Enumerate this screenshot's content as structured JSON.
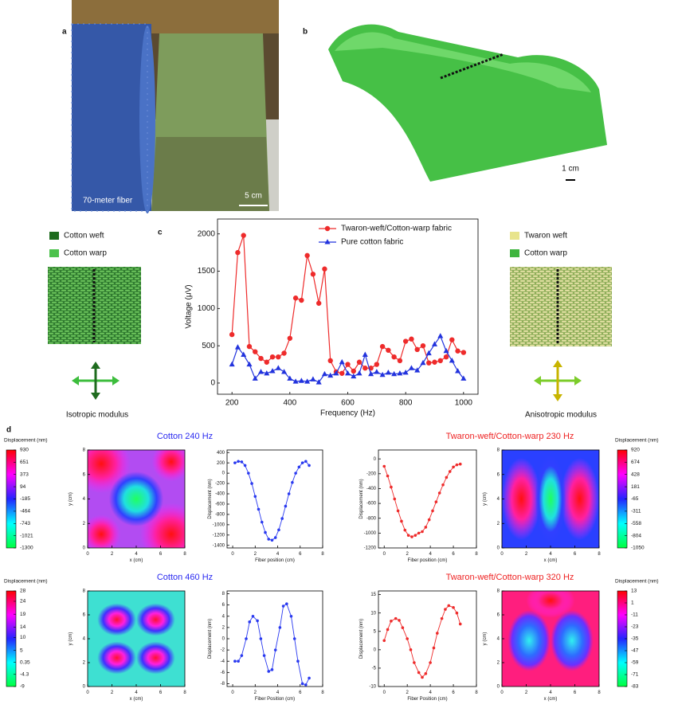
{
  "panel_labels": [
    "a",
    "b",
    "c",
    "d"
  ],
  "photo_a": {
    "caption": "70-meter fiber",
    "scale_bar": "5 cm"
  },
  "photo_b": {
    "scale_bar": "1 cm"
  },
  "fabric_left": {
    "legend": [
      "Cotton weft",
      "Cotton warp"
    ],
    "caption": "Isotropic modulus"
  },
  "fabric_right": {
    "legend": [
      "Twaron weft",
      "Cotton warp"
    ],
    "caption": "Anisotropic modulus"
  },
  "chart_data": [
    {
      "type": "line",
      "x_label": "Frequency (Hz)",
      "y_label": "Voltage (μV)",
      "legend": "upper right",
      "x": [
        200,
        220,
        240,
        260,
        280,
        300,
        320,
        340,
        360,
        380,
        400,
        420,
        440,
        460,
        480,
        500,
        520,
        540,
        560,
        580,
        600,
        620,
        640,
        660,
        680,
        700,
        720,
        740,
        760,
        780,
        800,
        820,
        840,
        860,
        880,
        900,
        920,
        940,
        960,
        980,
        1000
      ],
      "series": [
        {
          "name": "Twaron-weft/Cotton-warp fabric",
          "color": "#ee2b2b",
          "marker": "circle",
          "values": [
            650,
            1750,
            1980,
            490,
            420,
            330,
            280,
            350,
            350,
            400,
            600,
            1140,
            1110,
            1710,
            1460,
            1070,
            1530,
            300,
            150,
            130,
            250,
            160,
            280,
            200,
            200,
            250,
            490,
            440,
            350,
            300,
            560,
            590,
            450,
            500,
            270,
            280,
            300,
            350,
            580,
            430,
            410
          ]
        },
        {
          "name": "Pure cotton fabric",
          "color": "#2233dd",
          "marker": "triangle",
          "values": [
            250,
            480,
            380,
            250,
            60,
            150,
            130,
            160,
            200,
            150,
            60,
            20,
            30,
            20,
            50,
            10,
            120,
            100,
            130,
            280,
            130,
            90,
            130,
            380,
            120,
            150,
            110,
            140,
            120,
            130,
            140,
            200,
            170,
            270,
            400,
            520,
            630,
            430,
            300,
            160,
            60
          ]
        }
      ],
      "xlim": [
        150,
        1050
      ],
      "ylim": [
        -150,
        2200
      ],
      "xticks": [
        200,
        400,
        600,
        800,
        1000
      ],
      "yticks": [
        0,
        500,
        1000,
        1500,
        2000
      ]
    },
    {
      "type": "heatmap",
      "title": "Cotton 240 Hz",
      "title_color": "#2a2af0",
      "colorbar": "left",
      "colorbar_label": "Displacement (nm)",
      "clim": [
        -1300,
        930
      ],
      "colorbar_ticks": [
        930,
        651,
        373,
        94,
        -185,
        -464,
        -743,
        -1021,
        -1300
      ],
      "x_label": "x (cm)",
      "y_label": "y (cm)",
      "xlim": [
        0,
        8
      ],
      "ylim": [
        0,
        8
      ],
      "xticks": [
        0,
        2,
        4,
        6,
        8
      ],
      "yticks": [
        0,
        2,
        4,
        6,
        8
      ]
    },
    {
      "type": "line",
      "x_label": "Fiber position (cm)",
      "y_label": "Displacement (nm)",
      "x": [
        0.2,
        0.5,
        0.8,
        1.1,
        1.4,
        1.7,
        2.0,
        2.3,
        2.6,
        2.9,
        3.2,
        3.5,
        3.8,
        4.1,
        4.4,
        4.7,
        5.0,
        5.3,
        5.6,
        5.9,
        6.2,
        6.5,
        6.8
      ],
      "series": [
        {
          "color": "#2a3af0",
          "marker": "circle",
          "values": [
            200,
            230,
            220,
            150,
            0,
            -200,
            -450,
            -700,
            -950,
            -1150,
            -1280,
            -1300,
            -1250,
            -1100,
            -880,
            -640,
            -400,
            -180,
            0,
            120,
            200,
            230,
            150
          ]
        }
      ],
      "xlim": [
        -0.5,
        8
      ],
      "ylim": [
        -1450,
        450
      ],
      "xticks": [
        0,
        2,
        4,
        6,
        8
      ],
      "yticks": [
        400,
        200,
        0,
        -200,
        -400,
        -600,
        -800,
        -1000,
        -1200,
        -1400
      ]
    },
    {
      "type": "line",
      "x_label": "Fiber position (cm)",
      "y_label": "Displacement (nm)",
      "x": [
        0,
        0.3,
        0.6,
        0.9,
        1.2,
        1.5,
        1.8,
        2.1,
        2.4,
        2.7,
        3.0,
        3.3,
        3.6,
        3.9,
        4.2,
        4.5,
        4.8,
        5.1,
        5.4,
        5.7,
        6.0,
        6.3,
        6.6
      ],
      "series": [
        {
          "color": "#ee2b2b",
          "marker": "circle",
          "values": [
            -100,
            -230,
            -380,
            -540,
            -700,
            -840,
            -960,
            -1030,
            -1050,
            -1030,
            -1000,
            -980,
            -920,
            -820,
            -700,
            -580,
            -460,
            -350,
            -250,
            -170,
            -110,
            -80,
            -70
          ]
        }
      ],
      "xlim": [
        -0.5,
        8
      ],
      "ylim": [
        -1200,
        120
      ],
      "xticks": [
        0,
        2,
        4,
        6,
        8
      ],
      "yticks": [
        0,
        -200,
        -400,
        -600,
        -800,
        -1000,
        -1200
      ]
    },
    {
      "type": "heatmap",
      "title": "Twaron-weft/Cotton-warp 230 Hz",
      "title_color": "#ee2222",
      "colorbar": "right",
      "colorbar_label": "Displacement (nm)",
      "clim": [
        -1050,
        920
      ],
      "colorbar_ticks": [
        920,
        674,
        428,
        181,
        -65,
        -311,
        -558,
        -804,
        -1050
      ],
      "x_label": "x (cm)",
      "y_label": "y (cm)",
      "xlim": [
        0,
        8
      ],
      "ylim": [
        0,
        8
      ],
      "xticks": [
        0,
        2,
        4,
        6,
        8
      ],
      "yticks": [
        0,
        2,
        4,
        6,
        8
      ]
    },
    {
      "type": "heatmap",
      "title": "Cotton 460 Hz",
      "title_color": "#2a2af0",
      "colorbar": "left",
      "colorbar_label": "Displacement (nm)",
      "clim": [
        -9,
        28
      ],
      "colorbar_ticks": [
        28,
        24,
        19,
        14,
        10,
        5,
        0.35,
        -4.3,
        -9
      ],
      "x_label": "x (cm)",
      "y_label": "y (cm)",
      "xlim": [
        0,
        8
      ],
      "ylim": [
        0,
        8
      ],
      "xticks": [
        0,
        2,
        4,
        6,
        8
      ],
      "yticks": [
        0,
        2,
        4,
        6,
        8
      ]
    },
    {
      "type": "line",
      "x_label": "Fiber Position (cm)",
      "y_label": "Displacement (nm)",
      "x": [
        0.2,
        0.5,
        0.8,
        1.2,
        1.5,
        1.8,
        2.2,
        2.5,
        2.8,
        3.2,
        3.5,
        3.8,
        4.2,
        4.5,
        4.8,
        5.2,
        5.5,
        5.8,
        6.2,
        6.5,
        6.8
      ],
      "series": [
        {
          "color": "#2a3af0",
          "marker": "circle",
          "values": [
            -4,
            -4,
            -3,
            0,
            3,
            4,
            3.2,
            0,
            -3,
            -5.8,
            -5.5,
            -2,
            2,
            5.8,
            6.2,
            4,
            0,
            -4,
            -8,
            -8.2,
            -7
          ]
        }
      ],
      "xlim": [
        -0.5,
        8
      ],
      "ylim": [
        -8.5,
        8.5
      ],
      "xticks": [
        0,
        2,
        4,
        6,
        8
      ],
      "yticks": [
        8,
        6,
        4,
        2,
        0,
        -2,
        -4,
        -6,
        -8
      ]
    },
    {
      "type": "line",
      "x_label": "Fiber Position (cm)",
      "y_label": "Displacement (nm)",
      "x": [
        0,
        0.3,
        0.6,
        1.0,
        1.3,
        1.6,
        2.0,
        2.3,
        2.6,
        3.0,
        3.3,
        3.6,
        4.0,
        4.3,
        4.6,
        5.0,
        5.3,
        5.6,
        6.0,
        6.3,
        6.6
      ],
      "series": [
        {
          "color": "#ee2b2b",
          "marker": "circle",
          "values": [
            2.5,
            5.5,
            7.8,
            8.5,
            8,
            6,
            3,
            0,
            -3.5,
            -6.2,
            -7.5,
            -6.5,
            -3.5,
            0.5,
            4.5,
            8.5,
            11,
            12,
            11.5,
            10,
            7
          ]
        }
      ],
      "xlim": [
        -0.5,
        8
      ],
      "ylim": [
        -10,
        16
      ],
      "xticks": [
        0,
        2,
        4,
        6,
        8
      ],
      "yticks": [
        15,
        10,
        5,
        0,
        -5,
        -10
      ]
    },
    {
      "type": "heatmap",
      "title": "Twaron-weft/Cotton-warp 320 Hz",
      "title_color": "#ee2222",
      "colorbar": "right",
      "colorbar_label": "Displacement (nm)",
      "clim": [
        -83,
        13
      ],
      "colorbar_ticks": [
        13,
        1,
        -11,
        -23,
        -35,
        -47,
        -59,
        -71,
        -83
      ],
      "x_label": "x (cm)",
      "y_label": "y (cm)",
      "xlim": [
        0,
        8
      ],
      "ylim": [
        0,
        8
      ],
      "xticks": [
        0,
        2,
        4,
        6,
        8
      ],
      "yticks": [
        0,
        2,
        4,
        6,
        8
      ]
    }
  ]
}
